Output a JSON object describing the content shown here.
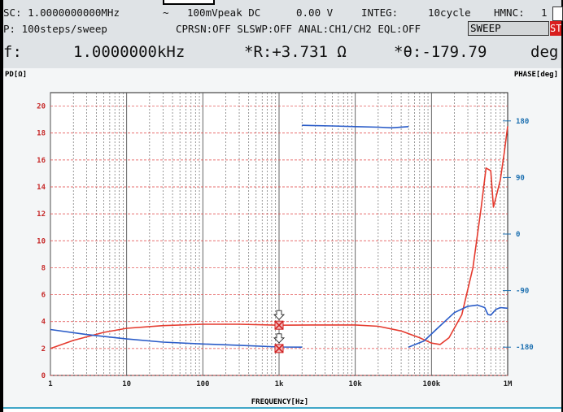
{
  "header": {
    "line1": {
      "osc": "SC: 1.0000000000MHz",
      "wave_symbol": "~",
      "amplitude": "100mVpeak DC",
      "dc_value": "0.00 V",
      "integ": "INTEG:",
      "integ_value": "10cycle",
      "hmnc": "HMNC:",
      "hmnc_value": "1"
    },
    "line2": {
      "sweep_steps": "P:    100steps/sweep",
      "settings": "CPRSN:OFF SLSWP:OFF ANAL:CH1/CH2 EQL:OFF",
      "mode": "SWEEP",
      "tab": "ST"
    },
    "line3": {
      "freq_label": "f:",
      "freq_value": "1.0000000kHz",
      "r_value": "*R:+3.731 Ω",
      "theta_value": "*θ:-179.79",
      "theta_unit": "deg"
    }
  },
  "colors": {
    "red_series": "#e53a2e",
    "blue_series": "#2a5cc8",
    "grid": "#555555",
    "red_hgrid": "#e04040",
    "label_red": "#c62828",
    "label_blue": "#1b6fb0"
  },
  "chart_data": {
    "type": "line",
    "xscale": "log",
    "xlim": [
      1,
      1000000
    ],
    "xlabel": "FREQUENCY[Hz]",
    "xticks": [
      1,
      10,
      100,
      1000,
      10000,
      100000,
      1000000
    ],
    "xtick_labels": [
      "1",
      "10",
      "100",
      "1k",
      "10k",
      "100k",
      "1M"
    ],
    "y_left": {
      "label": "PD[Ω]",
      "lim": [
        0,
        21
      ],
      "ticks": [
        0,
        2,
        4,
        6,
        8,
        10,
        12,
        14,
        16,
        18,
        20
      ],
      "tick_labels": [
        "0",
        "2",
        "4",
        "6",
        "8",
        "10",
        "12",
        "14",
        "16",
        "18",
        "20"
      ]
    },
    "y_right": {
      "label": "PHASE[deg]",
      "lim": [
        -225,
        225
      ],
      "ticks": [
        180,
        90,
        0,
        -90,
        -180
      ],
      "tick_labels": [
        "180",
        "90",
        "0",
        "-90",
        "-180"
      ]
    },
    "series": [
      {
        "axis": "left",
        "color": "red",
        "points": [
          [
            1,
            2.0
          ],
          [
            2,
            2.6
          ],
          [
            5,
            3.2
          ],
          [
            10,
            3.5
          ],
          [
            30,
            3.7
          ],
          [
            100,
            3.8
          ],
          [
            300,
            3.8
          ],
          [
            1000,
            3.73
          ],
          [
            3000,
            3.75
          ],
          [
            10000,
            3.75
          ],
          [
            20000,
            3.65
          ],
          [
            40000,
            3.3
          ],
          [
            70000,
            2.8
          ],
          [
            100000,
            2.4
          ],
          [
            130000,
            2.3
          ],
          [
            170000,
            2.8
          ],
          [
            250000,
            4.5
          ],
          [
            350000,
            8.0
          ],
          [
            450000,
            12.5
          ],
          [
            520000,
            15.4
          ],
          [
            600000,
            15.2
          ],
          [
            650000,
            12.5
          ],
          [
            700000,
            13.2
          ],
          [
            800000,
            14.5
          ],
          [
            900000,
            16.5
          ],
          [
            1000000,
            18.5
          ]
        ]
      },
      {
        "axis": "right",
        "color": "blue",
        "points": [
          [
            1,
            -152
          ],
          [
            3,
            -160
          ],
          [
            10,
            -167
          ],
          [
            30,
            -172
          ],
          [
            100,
            -175
          ],
          [
            300,
            -177
          ],
          [
            1000,
            -179.79
          ],
          [
            2000,
            -180
          ]
        ]
      },
      {
        "axis": "right",
        "color": "blue",
        "points": [
          [
            2000,
            173
          ],
          [
            5000,
            172
          ],
          [
            10000,
            171
          ],
          [
            20000,
            170
          ],
          [
            30000,
            169
          ],
          [
            50000,
            171
          ]
        ]
      },
      {
        "axis": "right",
        "color": "blue",
        "points": [
          [
            50000,
            -180
          ],
          [
            80000,
            -170
          ],
          [
            120000,
            -150
          ],
          [
            200000,
            -125
          ],
          [
            300000,
            -115
          ],
          [
            400000,
            -113
          ],
          [
            500000,
            -117
          ],
          [
            550000,
            -128
          ],
          [
            600000,
            -129
          ],
          [
            700000,
            -120
          ],
          [
            800000,
            -117
          ],
          [
            1000000,
            -118
          ]
        ]
      }
    ],
    "markers": [
      {
        "x": 1000,
        "y": 3.73,
        "axis": "left"
      },
      {
        "x": 1000,
        "y": 2.0,
        "axis": "left"
      }
    ]
  }
}
